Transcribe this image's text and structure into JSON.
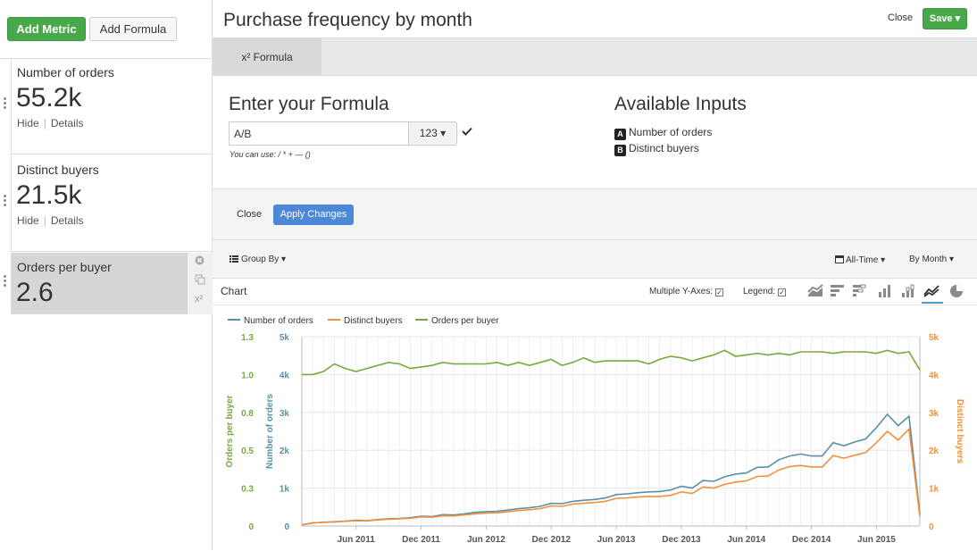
{
  "sidebar": {
    "add_metric": "Add Metric",
    "add_formula": "Add Formula",
    "metrics": [
      {
        "name": "Number of orders",
        "value": "55.2k",
        "hide": "Hide",
        "details": "Details"
      },
      {
        "name": "Distinct buyers",
        "value": "21.5k",
        "hide": "Hide",
        "details": "Details"
      },
      {
        "name": "Orders per buyer",
        "value": "2.6"
      }
    ],
    "formula_icon": "x²"
  },
  "header": {
    "title": "Purchase frequency by month",
    "close": "Close",
    "save": "Save ▾"
  },
  "tabs": [
    {
      "label": "x² Formula"
    }
  ],
  "formula": {
    "heading": "Enter your Formula",
    "value": "A/B",
    "format": "123 ▾",
    "hint": "You can use: / * + — ()",
    "inputs_heading": "Available Inputs",
    "inputs": [
      {
        "letter": "A",
        "label": "Number of orders"
      },
      {
        "letter": "B",
        "label": "Distinct buyers"
      }
    ],
    "close": "Close",
    "apply": "Apply Changes"
  },
  "controls": {
    "group_by": "Group By ▾",
    "range": "All-Time ▾",
    "interval": "By Month ▾"
  },
  "chart_panel": {
    "label": "Chart",
    "multi_axes": "Multiple Y-Axes:",
    "legend": "Legend:",
    "checked": "✓",
    "icons": [
      "area-chart-icon",
      "bar-horizontal-icon",
      "stacked-bar-icon",
      "column-chart-icon",
      "stacked-column-icon",
      "line-chart-icon",
      "pie-chart-icon"
    ]
  },
  "colors": {
    "orders": "#5b8fa8",
    "buyers": "#f0913d",
    "ratio": "#79a83c",
    "green_button": "#48a94a",
    "blue_button": "#4d87d8"
  },
  "chart_data": {
    "type": "line",
    "legend_position": "top-left",
    "grid": true,
    "x_labels": [
      "Jun 2011",
      "Dec 2011",
      "Jun 2012",
      "Dec 2012",
      "Jun 2013",
      "Dec 2013",
      "Jun 2014",
      "Dec 2014",
      "Jun 2015"
    ],
    "x_start": "Jan 2011",
    "x_end": "Oct 2015",
    "axes": {
      "left_ratio": {
        "label": "Orders per buyer",
        "ticks": [
          "1.3",
          "1.0",
          "0.8",
          "0.5",
          "0.3",
          "0"
        ],
        "range": [
          0,
          1.25
        ]
      },
      "left_orders": {
        "label": "Number of orders",
        "ticks": [
          "5k",
          "4k",
          "3k",
          "2k",
          "1k",
          "0"
        ],
        "range": [
          0,
          5000
        ]
      },
      "right_buyers": {
        "label": "Distinct buyers",
        "ticks": [
          "5k",
          "4k",
          "3k",
          "2k",
          "1k",
          "0"
        ],
        "range": [
          0,
          5000
        ]
      }
    },
    "series": [
      {
        "name": "Number of orders",
        "axis": "left_orders",
        "values": [
          30,
          80,
          100,
          110,
          130,
          150,
          140,
          170,
          190,
          200,
          220,
          260,
          250,
          300,
          290,
          320,
          360,
          380,
          390,
          420,
          460,
          480,
          520,
          600,
          590,
          650,
          680,
          700,
          740,
          830,
          850,
          880,
          900,
          910,
          950,
          1050,
          1000,
          1200,
          1180,
          1300,
          1370,
          1400,
          1550,
          1560,
          1750,
          1850,
          1900,
          1850,
          1850,
          2200,
          2120,
          2220,
          2300,
          2600,
          2950,
          2650,
          2900,
          300
        ]
      },
      {
        "name": "Distinct buyers",
        "axis": "right_buyers",
        "values": [
          30,
          80,
          95,
          105,
          125,
          140,
          135,
          160,
          180,
          190,
          205,
          240,
          230,
          270,
          265,
          295,
          320,
          340,
          350,
          375,
          410,
          430,
          460,
          530,
          520,
          580,
          600,
          620,
          650,
          730,
          740,
          770,
          780,
          780,
          810,
          900,
          860,
          1030,
          1000,
          1100,
          1160,
          1190,
          1310,
          1320,
          1480,
          1570,
          1600,
          1560,
          1560,
          1860,
          1790,
          1870,
          1940,
          2200,
          2500,
          2270,
          2560,
          250
        ]
      },
      {
        "name": "Orders per buyer",
        "axis": "left_ratio",
        "values": [
          1.0,
          1.0,
          1.02,
          1.07,
          1.04,
          1.02,
          1.04,
          1.06,
          1.08,
          1.07,
          1.04,
          1.05,
          1.06,
          1.08,
          1.07,
          1.07,
          1.07,
          1.07,
          1.08,
          1.06,
          1.08,
          1.06,
          1.08,
          1.1,
          1.06,
          1.08,
          1.11,
          1.08,
          1.09,
          1.09,
          1.09,
          1.09,
          1.07,
          1.1,
          1.12,
          1.11,
          1.09,
          1.11,
          1.13,
          1.16,
          1.12,
          1.13,
          1.14,
          1.13,
          1.14,
          1.13,
          1.15,
          1.15,
          1.15,
          1.14,
          1.15,
          1.15,
          1.15,
          1.14,
          1.16,
          1.14,
          1.15,
          1.03
        ]
      }
    ]
  }
}
